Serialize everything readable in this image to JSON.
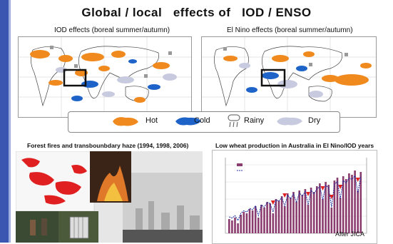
{
  "title": "Global / local   effects of   IOD / ENSO",
  "maps": {
    "iod": {
      "label": "IOD effects (boreal summer/autumn)"
    },
    "elnino": {
      "label": "El Nino effects (boreal summer/autumn)"
    }
  },
  "legend": {
    "hot": "Hot",
    "cold": "Cold",
    "rainy": "Rainy",
    "dry": "Dry"
  },
  "fires": {
    "label": "Forest fires and transbounbdary haze (1994, 1998, 2006)"
  },
  "wheat": {
    "label": "Low wheat production in Australia in El Nino/IOD years"
  },
  "credit": "After JICA",
  "colors": {
    "hot": "#f08a1e",
    "cold": "#1e64c8",
    "dry": "#c8cbe0",
    "rainy": "#999999",
    "strip": "#3a56b0",
    "bars": "#8a3c6e",
    "line": "#1e2fa0",
    "arrow": "#e02020"
  }
}
